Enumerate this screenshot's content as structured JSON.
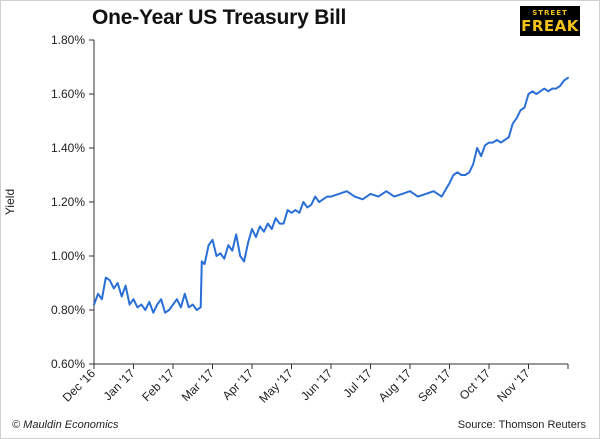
{
  "title": "One-Year US Treasury Bill",
  "logo": {
    "line1": "STREET",
    "line2": "FREAK"
  },
  "footer": {
    "left": "© Mauldin Economics",
    "right": "Source: Thomson Reuters"
  },
  "chart_data": {
    "type": "line",
    "title": "One-Year US Treasury Bill",
    "xlabel": "",
    "ylabel": "Yield",
    "ylim": [
      0.6,
      1.8
    ],
    "ytick_values": [
      0.6,
      0.8,
      1.0,
      1.2,
      1.4,
      1.6,
      1.8
    ],
    "ytick_labels": [
      "0.60%",
      "0.80%",
      "1.00%",
      "1.20%",
      "1.40%",
      "1.60%",
      "1.80%"
    ],
    "xlim": [
      0,
      12
    ],
    "xtick_values": [
      0,
      1,
      2,
      3,
      4,
      5,
      6,
      7,
      8,
      9,
      10,
      11
    ],
    "xtick_labels": [
      "Dec '16",
      "Jan '17",
      "Feb '17",
      "Mar '17",
      "Apr '17",
      "May '17",
      "Jun '17",
      "Jul '17",
      "Aug '17",
      "Sep '17",
      "Oct '17",
      "Nov '17"
    ],
    "grid": false,
    "line_color": "#2a6fd6",
    "series": [
      {
        "x": [
          0,
          0.1,
          0.2,
          0.3,
          0.4,
          0.5,
          0.6,
          0.7,
          0.8,
          0.9,
          1.0,
          1.1,
          1.2,
          1.3,
          1.4,
          1.5,
          1.6,
          1.7,
          1.8,
          1.9,
          2.0,
          2.1,
          2.2,
          2.3,
          2.4,
          2.5,
          2.6,
          2.7,
          2.73,
          2.8,
          2.9,
          3.0,
          3.1,
          3.2,
          3.3,
          3.4,
          3.5,
          3.6,
          3.7,
          3.8,
          3.9,
          4.0,
          4.1,
          4.2,
          4.3,
          4.4,
          4.5,
          4.6,
          4.7,
          4.8,
          4.9,
          5.0,
          5.1,
          5.2,
          5.3,
          5.4,
          5.5,
          5.6,
          5.7,
          5.8,
          5.9,
          6.0,
          6.2,
          6.4,
          6.6,
          6.8,
          7.0,
          7.2,
          7.4,
          7.6,
          7.8,
          8.0,
          8.2,
          8.4,
          8.6,
          8.8,
          9.0,
          9.1,
          9.2,
          9.3,
          9.4,
          9.5,
          9.6,
          9.7,
          9.8,
          9.9,
          10.0,
          10.1,
          10.2,
          10.3,
          10.4,
          10.5,
          10.6,
          10.7,
          10.8,
          10.9,
          11.0,
          11.1,
          11.2,
          11.3,
          11.4,
          11.5,
          11.6,
          11.7,
          11.8,
          11.9,
          12.0
        ],
        "y": [
          0.82,
          0.86,
          0.84,
          0.92,
          0.91,
          0.88,
          0.9,
          0.85,
          0.89,
          0.82,
          0.84,
          0.81,
          0.82,
          0.8,
          0.83,
          0.79,
          0.82,
          0.84,
          0.79,
          0.8,
          0.82,
          0.84,
          0.81,
          0.86,
          0.81,
          0.82,
          0.8,
          0.81,
          0.98,
          0.97,
          1.04,
          1.06,
          1.0,
          1.01,
          0.99,
          1.04,
          1.02,
          1.08,
          1.0,
          0.98,
          1.05,
          1.1,
          1.07,
          1.11,
          1.09,
          1.12,
          1.1,
          1.14,
          1.12,
          1.12,
          1.17,
          1.16,
          1.17,
          1.16,
          1.2,
          1.18,
          1.19,
          1.22,
          1.2,
          1.21,
          1.22,
          1.22,
          1.23,
          1.24,
          1.22,
          1.21,
          1.23,
          1.22,
          1.24,
          1.22,
          1.23,
          1.24,
          1.22,
          1.23,
          1.24,
          1.22,
          1.27,
          1.3,
          1.31,
          1.3,
          1.3,
          1.31,
          1.34,
          1.4,
          1.37,
          1.41,
          1.42,
          1.42,
          1.43,
          1.42,
          1.43,
          1.44,
          1.49,
          1.51,
          1.54,
          1.55,
          1.6,
          1.61,
          1.6,
          1.61,
          1.62,
          1.61,
          1.62,
          1.62,
          1.63,
          1.65,
          1.66
        ]
      }
    ]
  }
}
